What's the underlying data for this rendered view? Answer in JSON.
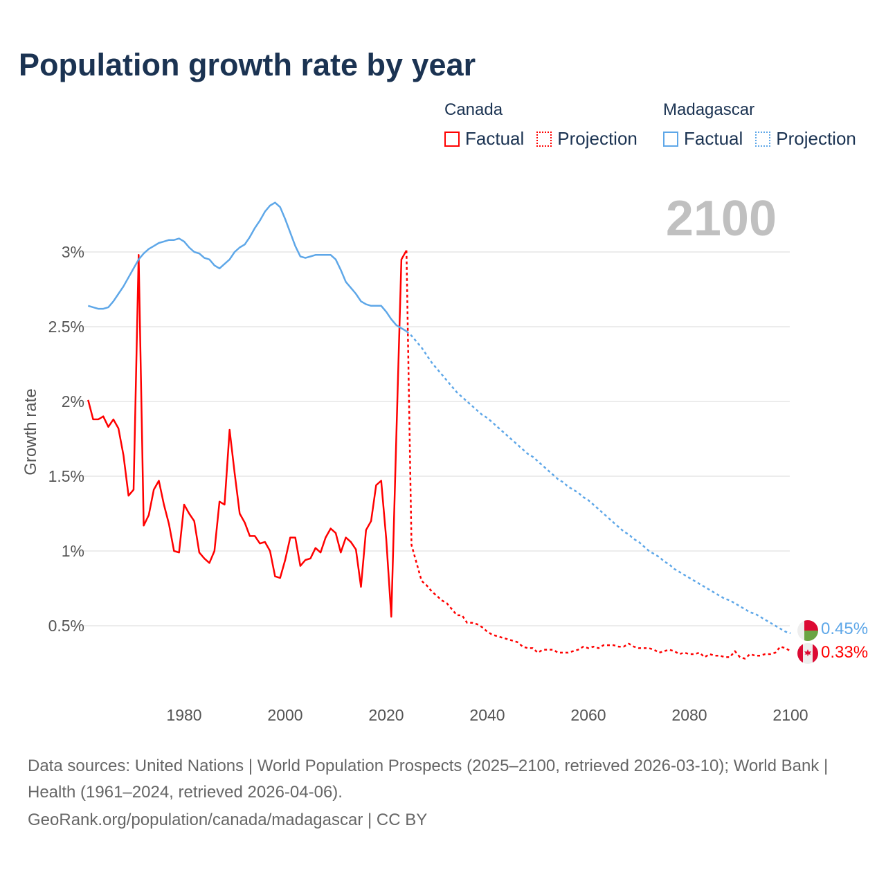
{
  "chart_data": {
    "type": "line",
    "title": "Population growth rate by year",
    "ylabel": "Growth rate",
    "xlabel": "",
    "current_year_label": "2100",
    "xlim": [
      1961,
      2100
    ],
    "ylim": [
      0,
      3.4
    ],
    "x_ticks": [
      "1980",
      "2000",
      "2020",
      "2040",
      "2060",
      "2080",
      "2100"
    ],
    "x_tick_values": [
      1980,
      2000,
      2020,
      2040,
      2060,
      2080,
      2100
    ],
    "y_ticks": [
      "0.5%",
      "1%",
      "1.5%",
      "2%",
      "2.5%",
      "3%"
    ],
    "y_tick_values": [
      0.5,
      1,
      1.5,
      2,
      2.5,
      3
    ],
    "grid": true,
    "legend": {
      "groups": [
        {
          "name": "Canada",
          "factual": "Factual",
          "projection": "Projection",
          "color": "#ff0000"
        },
        {
          "name": "Madagascar",
          "factual": "Factual",
          "projection": "Projection",
          "color": "#5ea7e8"
        }
      ],
      "placement": "top-right"
    },
    "series": [
      {
        "name": "Canada",
        "kind": "Factual",
        "color": "#ff0000",
        "start_year": 1961,
        "values": [
          2.01,
          1.88,
          1.88,
          1.9,
          1.83,
          1.88,
          1.82,
          1.64,
          1.37,
          1.41,
          2.98,
          1.17,
          1.24,
          1.41,
          1.47,
          1.31,
          1.18,
          1.0,
          0.99,
          1.31,
          1.25,
          1.2,
          0.99,
          0.95,
          0.92,
          1.0,
          1.33,
          1.31,
          1.81,
          1.52,
          1.25,
          1.19,
          1.1,
          1.1,
          1.05,
          1.06,
          1.0,
          0.83,
          0.82,
          0.94,
          1.09,
          1.09,
          0.9,
          0.94,
          0.95,
          1.02,
          0.99,
          1.09,
          1.15,
          1.12,
          0.99,
          1.09,
          1.06,
          1.01,
          0.76,
          1.14,
          1.2,
          1.44,
          1.47,
          1.08,
          0.56,
          1.77,
          2.95,
          3.01
        ]
      },
      {
        "name": "Canada",
        "kind": "Projection",
        "color": "#ff0000",
        "start_year": 2024,
        "values": [
          3.01,
          1.04,
          0.92,
          0.8,
          0.77,
          0.73,
          0.7,
          0.67,
          0.65,
          0.61,
          0.57,
          0.57,
          0.52,
          0.52,
          0.51,
          0.49,
          0.46,
          0.44,
          0.43,
          0.42,
          0.41,
          0.4,
          0.39,
          0.36,
          0.35,
          0.35,
          0.32,
          0.34,
          0.34,
          0.34,
          0.32,
          0.32,
          0.32,
          0.33,
          0.34,
          0.36,
          0.35,
          0.36,
          0.35,
          0.37,
          0.37,
          0.37,
          0.36,
          0.36,
          0.38,
          0.36,
          0.35,
          0.35,
          0.35,
          0.34,
          0.32,
          0.33,
          0.34,
          0.33,
          0.31,
          0.32,
          0.31,
          0.31,
          0.32,
          0.29,
          0.31,
          0.3,
          0.3,
          0.29,
          0.29,
          0.33,
          0.29,
          0.28,
          0.31,
          0.3,
          0.3,
          0.31,
          0.31,
          0.32,
          0.36,
          0.35,
          0.33
        ]
      },
      {
        "name": "Madagascar",
        "kind": "Factual",
        "color": "#5ea7e8",
        "start_year": 1961,
        "values": [
          2.64,
          2.63,
          2.62,
          2.62,
          2.63,
          2.67,
          2.72,
          2.77,
          2.83,
          2.89,
          2.95,
          2.99,
          3.02,
          3.04,
          3.06,
          3.07,
          3.08,
          3.08,
          3.09,
          3.07,
          3.03,
          3.0,
          2.99,
          2.96,
          2.95,
          2.91,
          2.89,
          2.92,
          2.95,
          3.0,
          3.03,
          3.05,
          3.1,
          3.16,
          3.21,
          3.27,
          3.31,
          3.33,
          3.3,
          3.22,
          3.13,
          3.04,
          2.97,
          2.96,
          2.97,
          2.98,
          2.98,
          2.98,
          2.98,
          2.95,
          2.88,
          2.8,
          2.76,
          2.72,
          2.67,
          2.65,
          2.64,
          2.64,
          2.64,
          2.6,
          2.55,
          2.51,
          2.49,
          2.47
        ]
      },
      {
        "name": "Madagascar",
        "kind": "Projection",
        "color": "#5ea7e8",
        "start_year": 2024,
        "values": [
          2.47,
          2.44,
          2.4,
          2.36,
          2.31,
          2.26,
          2.22,
          2.18,
          2.14,
          2.1,
          2.06,
          2.03,
          2.0,
          1.97,
          1.94,
          1.91,
          1.89,
          1.86,
          1.83,
          1.8,
          1.77,
          1.74,
          1.71,
          1.68,
          1.65,
          1.63,
          1.6,
          1.57,
          1.54,
          1.51,
          1.48,
          1.46,
          1.43,
          1.41,
          1.39,
          1.36,
          1.34,
          1.31,
          1.28,
          1.25,
          1.22,
          1.19,
          1.16,
          1.13,
          1.11,
          1.08,
          1.06,
          1.03,
          1.0,
          0.98,
          0.96,
          0.93,
          0.91,
          0.88,
          0.86,
          0.84,
          0.82,
          0.8,
          0.78,
          0.76,
          0.74,
          0.72,
          0.7,
          0.68,
          0.67,
          0.65,
          0.63,
          0.61,
          0.59,
          0.58,
          0.56,
          0.54,
          0.52,
          0.5,
          0.48,
          0.46,
          0.45
        ]
      }
    ],
    "end_labels": [
      {
        "country": "Madagascar",
        "text": "0.45%",
        "color": "#5ea7e8"
      },
      {
        "country": "Canada",
        "text": "0.33%",
        "color": "#ff0000"
      }
    ]
  },
  "footer": {
    "sources": "Data sources: United Nations | World Population Prospects (2025–2100, retrieved 2026-03-10); World Bank | Health (1961–2024, retrieved 2026-04-06).",
    "credit": "GeoRank.org/population/canada/madagascar | CC BY"
  }
}
